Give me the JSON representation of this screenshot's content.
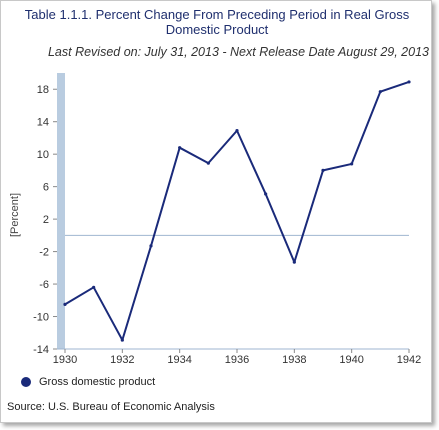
{
  "chart_data": {
    "type": "line",
    "title": "Table 1.1.1. Percent Change From Preceding Period in Real Gross Domestic Product",
    "subtitle": "Last Revised on: July 31, 2013 - Next Release Date August 29, 2013",
    "ylabel": "[Percent]",
    "xlabel": "",
    "x": [
      1930,
      1931,
      1932,
      1933,
      1934,
      1935,
      1936,
      1937,
      1938,
      1939,
      1940,
      1941,
      1942
    ],
    "x_tick_labels": [
      "1930",
      "1932",
      "1934",
      "1936",
      "1938",
      "1940",
      "1942"
    ],
    "y_tick_labels": [
      "18",
      "14",
      "10",
      "6",
      "2",
      "-2",
      "-6",
      "-10",
      "-14"
    ],
    "ylim": [
      -14,
      20
    ],
    "xlim": [
      1930,
      1942
    ],
    "series": [
      {
        "name": "Gross domestic product",
        "color": "#1a2a7a",
        "values": [
          -8.5,
          -6.4,
          -12.9,
          -1.3,
          10.8,
          8.9,
          12.9,
          5.1,
          -3.3,
          8.0,
          8.8,
          17.7,
          18.9
        ]
      }
    ],
    "zero_line": true,
    "legend_position": "bottom-left",
    "source": "Source: U.S. Bureau of Economic Analysis"
  }
}
